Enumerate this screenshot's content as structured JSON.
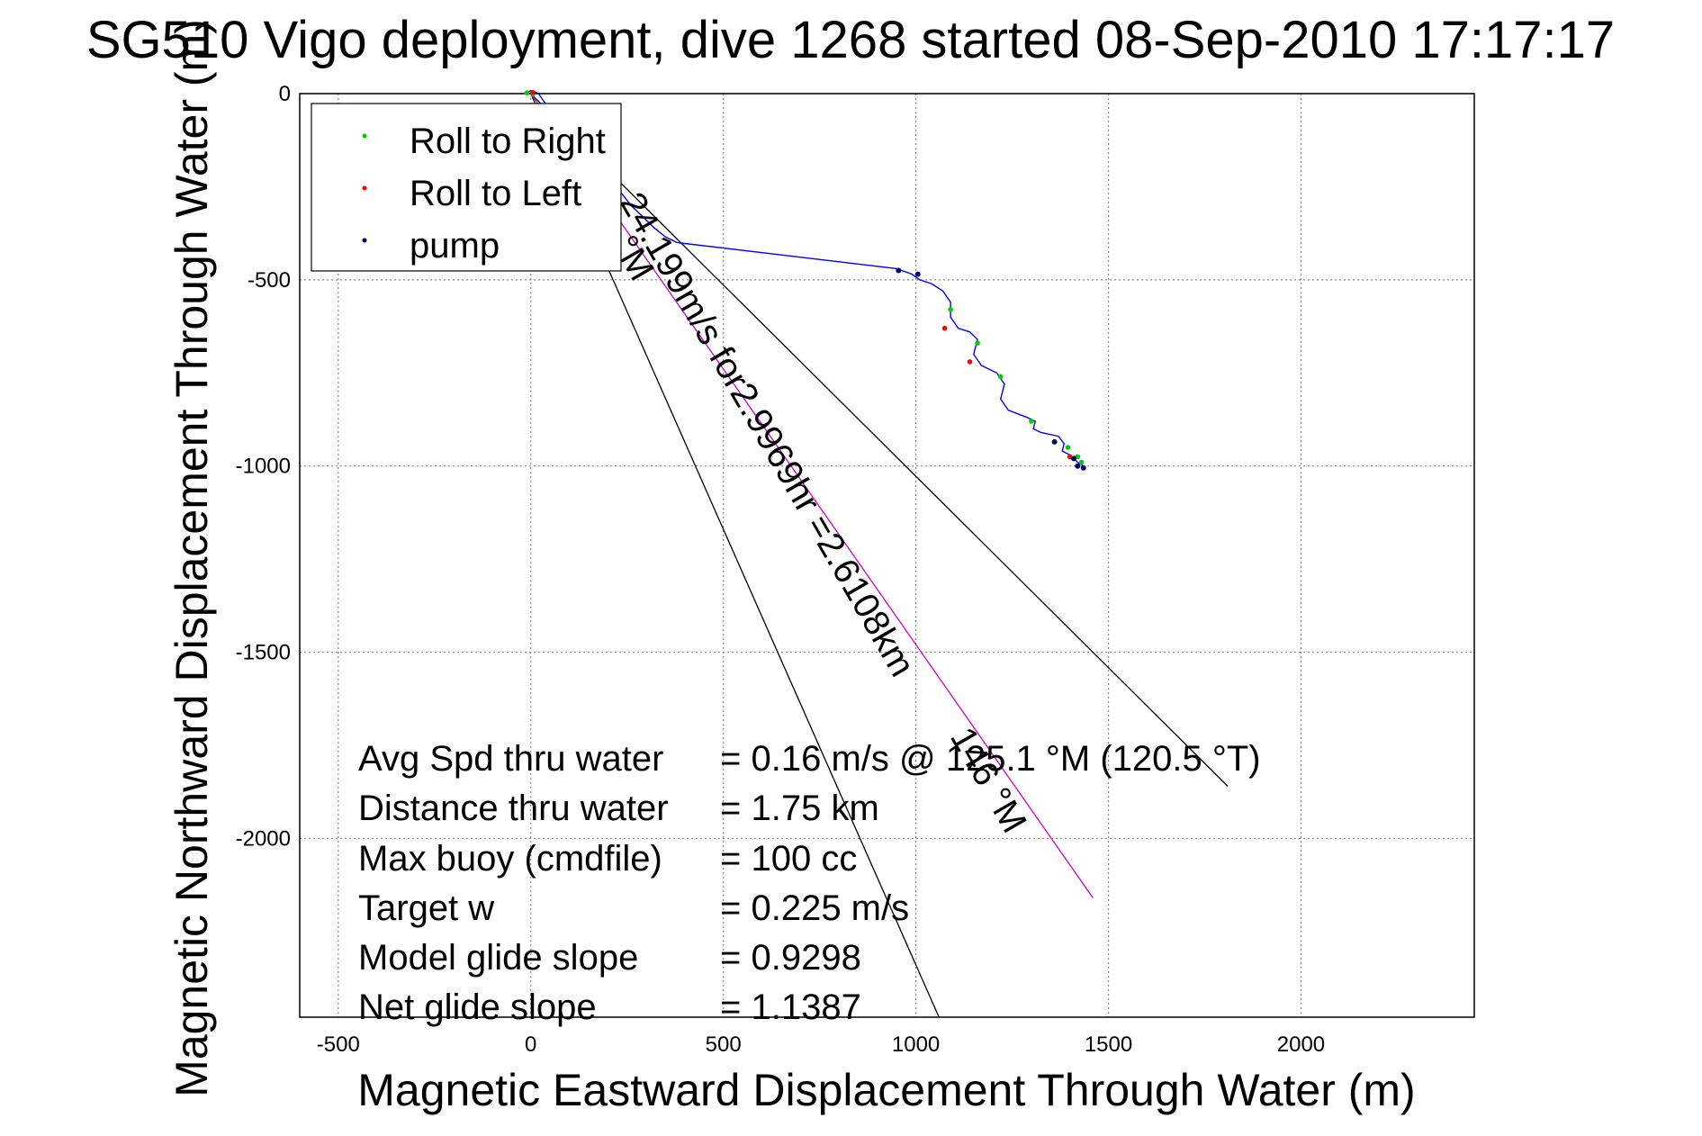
{
  "chart_data": {
    "type": "line",
    "title": "SG510 Vigo deployment, dive 1268 started 08-Sep-2010 17:17:17",
    "xlabel": "Magnetic Eastward Displacement Through Water (m)",
    "ylabel": "Magnetic Northward Displacement Through Water (m)",
    "xlim": [
      -600,
      2450
    ],
    "ylim": [
      -2480,
      0
    ],
    "xticks": [
      -500,
      0,
      500,
      1000,
      1500,
      2000
    ],
    "yticks": [
      0,
      -500,
      -1000,
      -1500,
      -2000
    ],
    "xtick_labels": [
      "-500",
      "0",
      "500",
      "1000",
      "1500",
      "2000"
    ],
    "ytick_labels": [
      "0",
      "-500",
      "-1000",
      "-1500",
      "-2000"
    ],
    "grid": true,
    "legend_position": "top-left",
    "legend": [
      {
        "label": "Roll to Right",
        "color": "#00cc00"
      },
      {
        "label": "Roll to Left",
        "color": "#ff0000"
      },
      {
        "label": "pump",
        "color": "#000066"
      }
    ],
    "track_color": "#0000ff",
    "series": [
      {
        "name": "track",
        "x": [
          -15,
          -5,
          0,
          10,
          20,
          40,
          60,
          90,
          120,
          160,
          190,
          210,
          230,
          260,
          290,
          320,
          350,
          380,
          950,
          990,
          1010,
          1040,
          1070,
          1090,
          1090,
          1110,
          1140,
          1160,
          1150,
          1170,
          1210,
          1230,
          1220,
          1240,
          1290,
          1310,
          1305,
          1325,
          1370,
          1385,
          1380,
          1400,
          1420,
          1435
        ],
        "y": [
          0,
          5,
          8,
          5,
          0,
          -30,
          -60,
          -100,
          -140,
          -180,
          -205,
          -230,
          -260,
          -300,
          -330,
          -360,
          -385,
          -400,
          -470,
          -485,
          -500,
          -510,
          -530,
          -560,
          -600,
          -630,
          -640,
          -660,
          -700,
          -730,
          -750,
          -780,
          -820,
          -850,
          -870,
          -880,
          -900,
          -910,
          -920,
          -940,
          -960,
          -970,
          -990,
          -1000
        ]
      },
      {
        "name": "heading-line-upper",
        "x": [
          0,
          1810
        ],
        "y": [
          0,
          -1860
        ]
      },
      {
        "name": "heading-line-lower",
        "x": [
          0,
          1060
        ],
        "y": [
          0,
          -2480
        ]
      },
      {
        "name": "current-line",
        "x": [
          0,
          1460
        ],
        "y": [
          0,
          -2160
        ]
      }
    ],
    "markers_green": [
      {
        "x": -10,
        "y": 2
      },
      {
        "x": 5,
        "y": -2
      },
      {
        "x": 1090,
        "y": -580
      },
      {
        "x": 1160,
        "y": -670
      },
      {
        "x": 1220,
        "y": -760
      },
      {
        "x": 1300,
        "y": -880
      },
      {
        "x": 1395,
        "y": -950
      },
      {
        "x": 1420,
        "y": -975
      },
      {
        "x": 1430,
        "y": -990
      }
    ],
    "markers_red": [
      {
        "x": 5,
        "y": 3
      },
      {
        "x": 1075,
        "y": -630
      },
      {
        "x": 1140,
        "y": -720
      },
      {
        "x": 1400,
        "y": -975
      }
    ],
    "markers_pump": [
      {
        "x": 955,
        "y": -475
      },
      {
        "x": 1005,
        "y": -485
      },
      {
        "x": 1360,
        "y": -935
      },
      {
        "x": 1420,
        "y": -1000
      },
      {
        "x": 1435,
        "y": -1005
      },
      {
        "x": 1410,
        "y": -980
      }
    ],
    "annotations": [
      {
        "text": "24.199m/s for2.9969hr =2.6108km",
        "x": 210,
        "y": -260
      },
      {
        "text": "°M",
        "x": 200,
        "y": -405
      },
      {
        "text": "146 °M",
        "x": 1060,
        "y": -1660
      }
    ],
    "stats": [
      {
        "label": "Avg Spd thru water",
        "value": "=  0.16 m/s @ 125.1 °M (120.5 °T)"
      },
      {
        "label": "Distance thru water",
        "value": "=  1.75 km"
      },
      {
        "label": "Max buoy (cmdfile)",
        "value": "= 100 cc"
      },
      {
        "label": "Target w",
        "value": "= 0.225 m/s"
      },
      {
        "label": "Model glide slope",
        "value": "= 0.9298"
      },
      {
        "label": "Net glide slope",
        "value": "= 1.1387"
      }
    ]
  }
}
